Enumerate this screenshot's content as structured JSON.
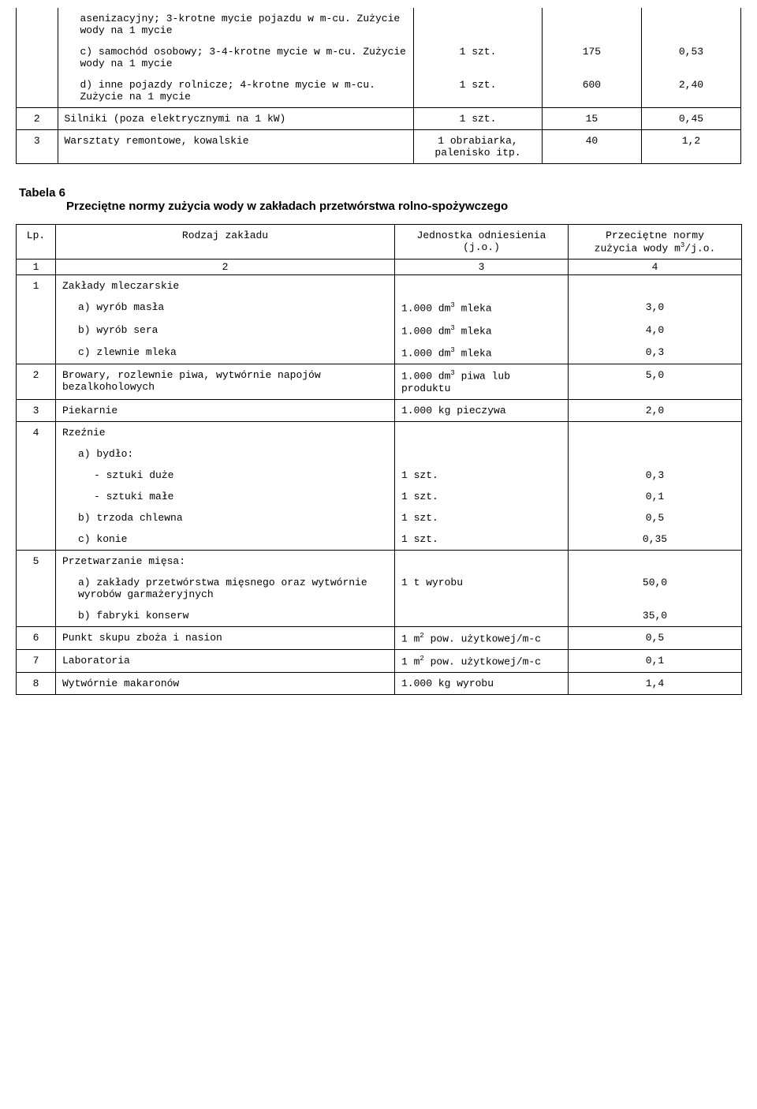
{
  "table1": {
    "rows": {
      "r1a": "asenizacyjny; 3-krotne mycie pojazdu w m-cu. Zużycie wody na 1 mycie",
      "r1c_label": "c) samochód osobowy; 3-4-krotne mycie w m-cu. Zużycie wody na 1 mycie",
      "r1c_u": "1 szt.",
      "r1c_v1": "175",
      "r1c_v2": "0,53",
      "r1d_label": "d) inne pojazdy rolnicze; 4-krotne mycie w m-cu. Zużycie na 1 mycie",
      "r1d_u": "1 szt.",
      "r1d_v1": "600",
      "r1d_v2": "2,40",
      "r2_n": "2",
      "r2_label": "Silniki (poza elektrycznymi na 1 kW)",
      "r2_u": "1 szt.",
      "r2_v1": "15",
      "r2_v2": "0,45",
      "r3_n": "3",
      "r3_label": "Warsztaty remontowe, kowalskie",
      "r3_u": "1 obrabiarka, palenisko itp.",
      "r3_v1": "40",
      "r3_v2": "1,2"
    }
  },
  "heading": {
    "title": "Tabela 6",
    "subtitle": "Przeciętne normy zużycia wody w zakładach przetwórstwa rolno-spożywczego"
  },
  "table2": {
    "head": {
      "c1": "Lp.",
      "c2": "Rodzaj zakładu",
      "c3": "Jednostka odniesienia (j.o.)",
      "c4_l1": "Przeciętne normy",
      "c4_l2": "zużycia wody m",
      "c4_l3": "/j.o."
    },
    "numrow": {
      "a": "1",
      "b": "2",
      "c": "3",
      "d": "4"
    },
    "rows": {
      "r1_n": "1",
      "r1_label": "Zakłady mleczarskie",
      "r1a_label": "a) wyrób masła",
      "r1a_u_pre": "1.000 dm",
      "r1a_u_post": " mleka",
      "r1a_v": "3,0",
      "r1b_label": "b) wyrób sera",
      "r1b_u_pre": "1.000 dm",
      "r1b_u_post": " mleka",
      "r1b_v": "4,0",
      "r1c_label": "c) zlewnie mleka",
      "r1c_u_pre": "1.000 dm",
      "r1c_u_post": " mleka",
      "r1c_v": "0,3",
      "r2_n": "2",
      "r2_label": "Browary, rozlewnie piwa, wytwórnie napojów bezalkoholowych",
      "r2_u_pre": "1.000 dm",
      "r2_u_post": " piwa lub produktu",
      "r2_v": "5,0",
      "r3_n": "3",
      "r3_label": "Piekarnie",
      "r3_u": "1.000 kg pieczywa",
      "r3_v": "2,0",
      "r4_n": "4",
      "r4_label": "Rzeźnie",
      "r4a_label": "a) bydło:",
      "r4a1_label": "- sztuki duże",
      "r4a1_u": "1 szt.",
      "r4a1_v": "0,3",
      "r4a2_label": "- sztuki małe",
      "r4a2_u": "1 szt.",
      "r4a2_v": "0,1",
      "r4b_label": "b) trzoda chlewna",
      "r4b_u": "1 szt.",
      "r4b_v": "0,5",
      "r4c_label": "c) konie",
      "r4c_u": "1 szt.",
      "r4c_v": "0,35",
      "r5_n": "5",
      "r5_label": "Przetwarzanie mięsa:",
      "r5a_label": "a) zakłady przetwórstwa mięsnego oraz wytwórnie wyrobów garmażeryjnych",
      "r5a_u": "1 t wyrobu",
      "r5a_v": "50,0",
      "r5b_label": "b) fabryki konserw",
      "r5b_v": "35,0",
      "r6_n": "6",
      "r6_label": "Punkt skupu zboża i nasion",
      "r6_u_pre": "1 m",
      "r6_u_post": " pow. użytkowej/m-c",
      "r6_v": "0,5",
      "r7_n": "7",
      "r7_label": "Laboratoria",
      "r7_u_pre": "1 m",
      "r7_u_post": " pow. użytkowej/m-c",
      "r7_v": "0,1",
      "r8_n": "8",
      "r8_label": "Wytwórnie makaronów",
      "r8_u": "1.000 kg wyrobu",
      "r8_v": "1,4"
    },
    "sup3": "3",
    "sup2": "2"
  }
}
